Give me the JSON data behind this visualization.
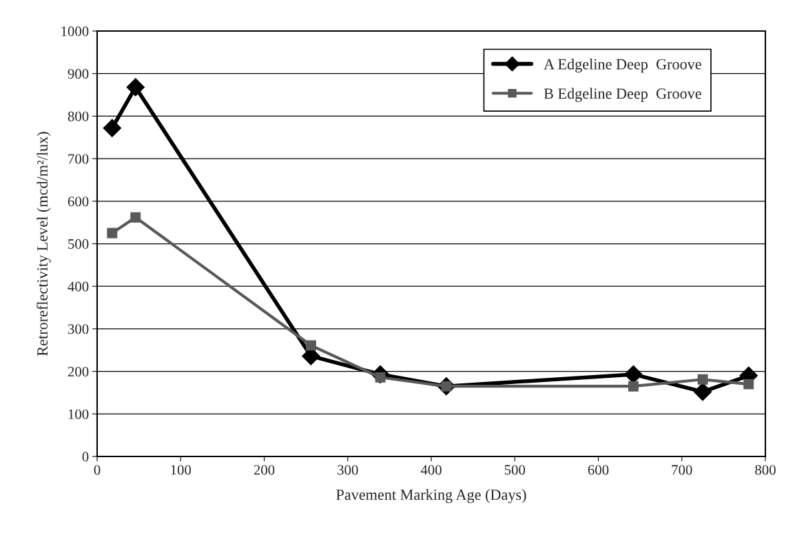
{
  "chart_data": {
    "type": "line",
    "xlabel": "Pavement Marking Age (Days)",
    "ylabel": "Retroreflectivity Level (mcd/m²/lux)",
    "x": [
      18,
      46,
      256,
      339,
      418,
      642,
      725,
      780
    ],
    "series": [
      {
        "name": "A Edgeline Deep  Groove",
        "color": "#000000",
        "marker": "diamond",
        "values": [
          772,
          868,
          236,
          193,
          165,
          193,
          152,
          190
        ]
      },
      {
        "name": "B Edgeline Deep  Groove",
        "color": "#595959",
        "marker": "square",
        "values": [
          525,
          562,
          261,
          186,
          165,
          165,
          181,
          170
        ]
      }
    ],
    "xlim": [
      0,
      800
    ],
    "xticks": [
      0,
      100,
      200,
      300,
      400,
      500,
      600,
      700,
      800
    ],
    "ylim": [
      0,
      1000
    ],
    "yticks": [
      0,
      100,
      200,
      300,
      400,
      500,
      600,
      700,
      800,
      900,
      1000
    ],
    "grid": "y",
    "legend": "top right",
    "line_style": "solid"
  }
}
